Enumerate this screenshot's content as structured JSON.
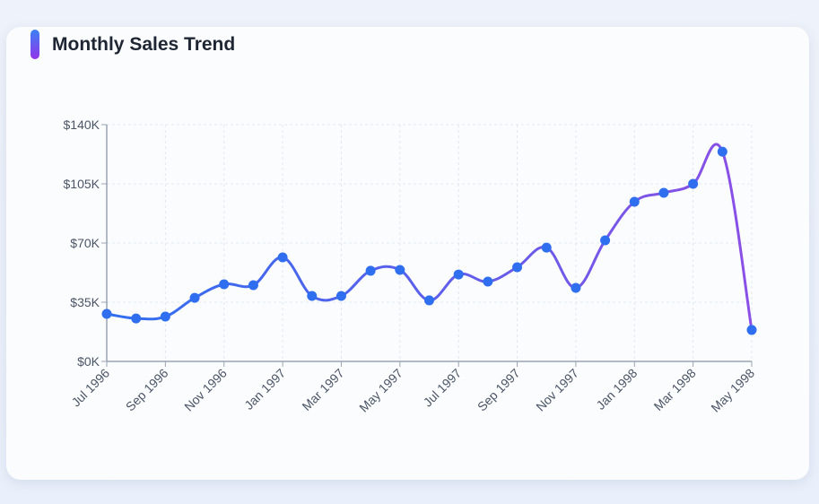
{
  "chart_data": {
    "type": "line",
    "title": "Monthly Sales Trend",
    "categories": [
      "Jul 1996",
      "Aug 1996",
      "Sep 1996",
      "Oct 1996",
      "Nov 1996",
      "Dec 1996",
      "Jan 1997",
      "Feb 1997",
      "Mar 1997",
      "Apr 1997",
      "May 1997",
      "Jun 1997",
      "Jul 1997",
      "Aug 1997",
      "Sep 1997",
      "Oct 1997",
      "Nov 1997",
      "Dec 1997",
      "Jan 1998",
      "Feb 1998",
      "Mar 1998",
      "Apr 1998",
      "May 1998"
    ],
    "xtick_labels": [
      "Jul 1996",
      "Sep 1996",
      "Nov 1996",
      "Jan 1997",
      "Mar 1997",
      "May 1997",
      "Jul 1997",
      "Sep 1997",
      "Nov 1997",
      "Jan 1998",
      "Mar 1998",
      "May 1998"
    ],
    "values": [
      28100,
      25400,
      26500,
      37600,
      45600,
      45100,
      61500,
      38700,
      38700,
      53600,
      54100,
      36100,
      51400,
      47200,
      55700,
      67300,
      43500,
      71600,
      94400,
      99700,
      105000,
      124000,
      18600
    ],
    "ylim": [
      0,
      140000
    ],
    "ytick_labels": [
      "$0K",
      "$35K",
      "$70K",
      "$105K",
      "$140K"
    ],
    "ytick_values": [
      0,
      35000,
      70000,
      105000,
      140000
    ],
    "xlabel": "",
    "ylabel": "",
    "grid": true,
    "colors": {
      "line_start": "#2f6fef",
      "line_end": "#8b4fe6",
      "point": "#2f6fef"
    }
  }
}
